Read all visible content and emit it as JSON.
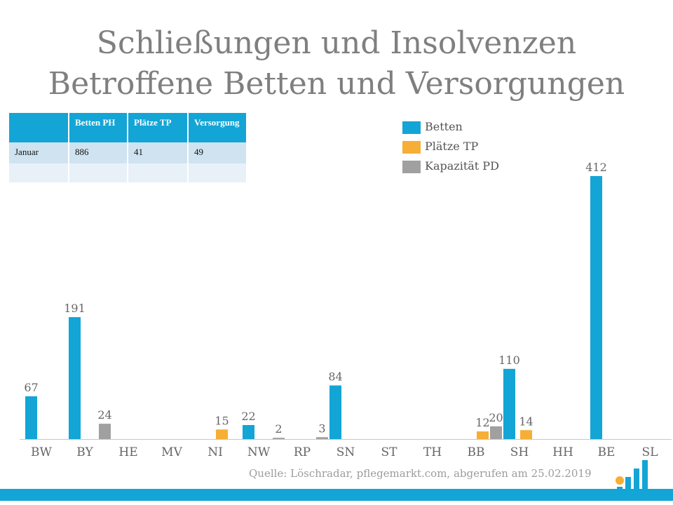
{
  "title": {
    "line1": "Schließungen und Insolvenzen",
    "line2": "Betroffene Betten und Versorgungen"
  },
  "summary_table": {
    "headers": [
      "",
      "Betten PH",
      "Plätze TP",
      "Versorgung"
    ],
    "rows": [
      [
        "Januar",
        "886",
        "41",
        "49"
      ],
      [
        "",
        "",
        "",
        ""
      ]
    ]
  },
  "source": "Quelle: Löschradar, pflegemarkt.com, abgerufen am 25.02.2019",
  "colors": {
    "betten": "#13a5d5",
    "plaetze": "#f6ae36",
    "kapazitaet": "#a0a0a0",
    "header": "#13a5d5"
  },
  "chart_data": {
    "type": "bar",
    "title": "Schließungen und Insolvenzen – Betroffene Betten und Versorgungen",
    "xlabel": "",
    "ylabel": "",
    "ylim": [
      0,
      430
    ],
    "grid": false,
    "legend_position": "top-right",
    "categories": [
      "BW",
      "BY",
      "HE",
      "MV",
      "NI",
      "NW",
      "RP",
      "SN",
      "ST",
      "TH",
      "BB",
      "SH",
      "HH",
      "BE",
      "SL"
    ],
    "series": [
      {
        "name": "Betten",
        "color": "#13a5d5",
        "values": [
          67,
          191,
          null,
          null,
          null,
          22,
          null,
          84,
          null,
          null,
          null,
          110,
          null,
          412,
          null
        ]
      },
      {
        "name": "Plätze TP",
        "color": "#f6ae36",
        "values": [
          null,
          null,
          null,
          null,
          15,
          null,
          null,
          null,
          null,
          null,
          12,
          14,
          null,
          null,
          null
        ]
      },
      {
        "name": "Kapazität PD",
        "color": "#a0a0a0",
        "values": [
          null,
          24,
          null,
          null,
          null,
          2,
          3,
          null,
          null,
          null,
          20,
          null,
          null,
          null,
          null
        ]
      }
    ]
  }
}
